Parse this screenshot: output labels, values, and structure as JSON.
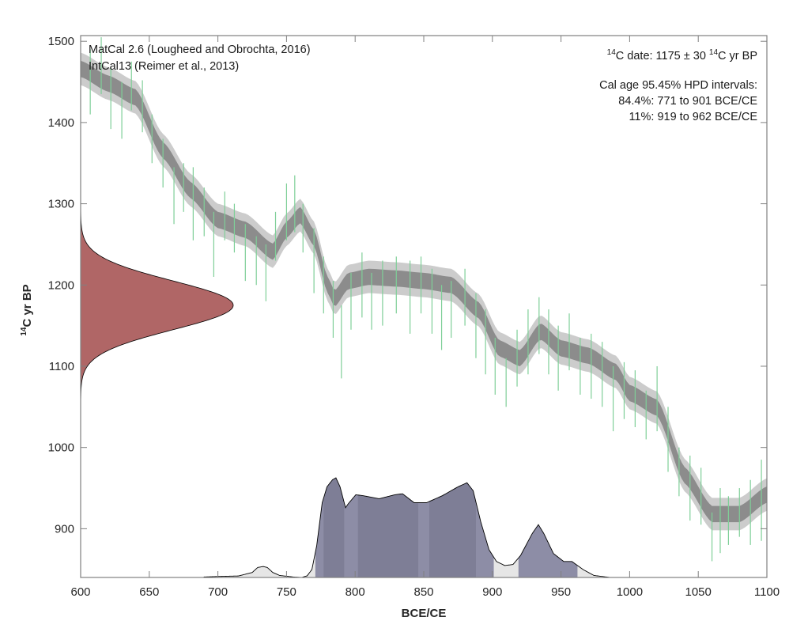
{
  "chart_data": {
    "type": "area",
    "title": "",
    "xlabel": "BCE/CE",
    "ylabel": {
      "sup": "14",
      "text": "C yr BP"
    },
    "xlim": [
      600,
      1100
    ],
    "ylim": [
      840,
      1507
    ],
    "xticks": [
      600,
      650,
      700,
      750,
      800,
      850,
      900,
      950,
      1000,
      1050,
      1100
    ],
    "yticks": [
      900,
      1000,
      1100,
      1200,
      1300,
      1400,
      1500
    ],
    "grid": false,
    "annotations_left": [
      "MatCal 2.6 (Lougheed and Obrochta, 2016)",
      "IntCal13 (Reimer et al., 2013)"
    ],
    "annotations_right": {
      "date_line": [
        {
          "sup": "14"
        },
        {
          "text": "C date: 1175 ± 30 "
        },
        {
          "sup": "14"
        },
        {
          "text": "C yr BP"
        }
      ],
      "hpd_title": "Cal age 95.45% HPD intervals:",
      "hpd_lines": [
        "84.4%: 771 to 901 BCE/CE",
        "11%: 919 to 962 BCE/CE"
      ]
    },
    "radiocarbon_date": {
      "mean": 1175,
      "sigma": 30
    },
    "calibration_curve": {
      "name": "IntCal13",
      "x": [
        600,
        620,
        640,
        660,
        680,
        700,
        720,
        740,
        750,
        760,
        770,
        780,
        785,
        795,
        810,
        830,
        850,
        870,
        890,
        905,
        920,
        935,
        950,
        970,
        990,
        1000,
        1020,
        1040,
        1060,
        1080,
        1100
      ],
      "y": [
        1466,
        1448,
        1431,
        1366,
        1317,
        1280,
        1268,
        1241,
        1268,
        1286,
        1258,
        1200,
        1183,
        1205,
        1210,
        1208,
        1205,
        1200,
        1169,
        1122,
        1110,
        1143,
        1122,
        1113,
        1093,
        1067,
        1049,
        966,
        918,
        918,
        942
      ],
      "sigma1": 10,
      "sigma2": 20
    },
    "calibration_data": [
      [
        607,
        1450,
        40
      ],
      [
        615,
        1470,
        35
      ],
      [
        622,
        1430,
        38
      ],
      [
        630,
        1415,
        35
      ],
      [
        637,
        1445,
        30
      ],
      [
        645,
        1420,
        32
      ],
      [
        652,
        1380,
        30
      ],
      [
        660,
        1350,
        30
      ],
      [
        668,
        1310,
        35
      ],
      [
        675,
        1320,
        30
      ],
      [
        682,
        1300,
        45
      ],
      [
        690,
        1290,
        30
      ],
      [
        697,
        1250,
        40
      ],
      [
        705,
        1285,
        30
      ],
      [
        712,
        1270,
        30
      ],
      [
        720,
        1240,
        35
      ],
      [
        728,
        1230,
        30
      ],
      [
        735,
        1215,
        35
      ],
      [
        742,
        1260,
        30
      ],
      [
        750,
        1290,
        35
      ],
      [
        756,
        1300,
        35
      ],
      [
        762,
        1270,
        30
      ],
      [
        770,
        1230,
        40
      ],
      [
        777,
        1200,
        35
      ],
      [
        784,
        1170,
        35
      ],
      [
        790,
        1130,
        45
      ],
      [
        797,
        1180,
        35
      ],
      [
        805,
        1200,
        40
      ],
      [
        812,
        1180,
        35
      ],
      [
        820,
        1190,
        40
      ],
      [
        830,
        1200,
        35
      ],
      [
        840,
        1185,
        45
      ],
      [
        848,
        1200,
        35
      ],
      [
        856,
        1180,
        40
      ],
      [
        863,
        1160,
        40
      ],
      [
        870,
        1170,
        35
      ],
      [
        880,
        1185,
        35
      ],
      [
        888,
        1150,
        40
      ],
      [
        895,
        1130,
        40
      ],
      [
        902,
        1100,
        35
      ],
      [
        910,
        1080,
        30
      ],
      [
        918,
        1110,
        35
      ],
      [
        926,
        1130,
        40
      ],
      [
        934,
        1150,
        35
      ],
      [
        941,
        1130,
        40
      ],
      [
        948,
        1110,
        40
      ],
      [
        956,
        1130,
        35
      ],
      [
        964,
        1100,
        35
      ],
      [
        972,
        1100,
        40
      ],
      [
        980,
        1090,
        40
      ],
      [
        988,
        1060,
        40
      ],
      [
        996,
        1070,
        35
      ],
      [
        1004,
        1060,
        35
      ],
      [
        1012,
        1040,
        30
      ],
      [
        1020,
        1060,
        40
      ],
      [
        1028,
        1010,
        40
      ],
      [
        1036,
        970,
        30
      ],
      [
        1044,
        950,
        40
      ],
      [
        1052,
        940,
        35
      ],
      [
        1060,
        890,
        30
      ],
      [
        1066,
        910,
        40
      ],
      [
        1072,
        910,
        30
      ],
      [
        1080,
        920,
        30
      ],
      [
        1088,
        920,
        40
      ],
      [
        1096,
        935,
        50
      ]
    ],
    "calibrated_pdf": {
      "x": [
        690,
        700,
        715,
        725,
        729,
        733,
        736,
        740,
        745,
        755,
        761,
        765,
        768.5,
        772,
        776,
        779.5,
        783.5,
        786,
        789,
        793,
        795,
        800.5,
        806,
        817.5,
        829,
        834.5,
        843,
        852,
        863.5,
        875,
        881.5,
        886,
        891.5,
        897.5,
        903,
        909,
        915,
        920.5,
        929,
        933.5,
        937.5,
        944.5,
        952,
        958,
        966,
        974,
        986
      ],
      "density": [
        0.005,
        0.01,
        0.015,
        0.05,
        0.1,
        0.11,
        0.1,
        0.05,
        0.02,
        0.005,
        0,
        0.016,
        0.08,
        0.32,
        0.75,
        0.91,
        0.98,
        1.0,
        0.91,
        0.7,
        0.74,
        0.83,
        0.82,
        0.79,
        0.83,
        0.84,
        0.75,
        0.75,
        0.82,
        0.91,
        0.95,
        0.87,
        0.56,
        0.28,
        0.16,
        0.12,
        0.13,
        0.22,
        0.44,
        0.53,
        0.44,
        0.24,
        0.16,
        0.16,
        0.08,
        0.02,
        0
      ]
    },
    "hpd_95_intervals": [
      [
        771,
        901
      ],
      [
        919,
        962
      ]
    ],
    "hpd_68_intervals": [
      [
        777,
        792
      ],
      [
        802,
        846
      ],
      [
        854,
        888
      ]
    ],
    "colors": {
      "curve_inner": "#8c8c8c",
      "curve_outer": "#cccccc",
      "data_bars": "#7fcf98",
      "date_pdf": "#b06666",
      "pdf_outside": "#e6e6e6",
      "pdf_95": "#8d8da6",
      "pdf_68": "#7e7e96",
      "axis": "#808080"
    }
  }
}
